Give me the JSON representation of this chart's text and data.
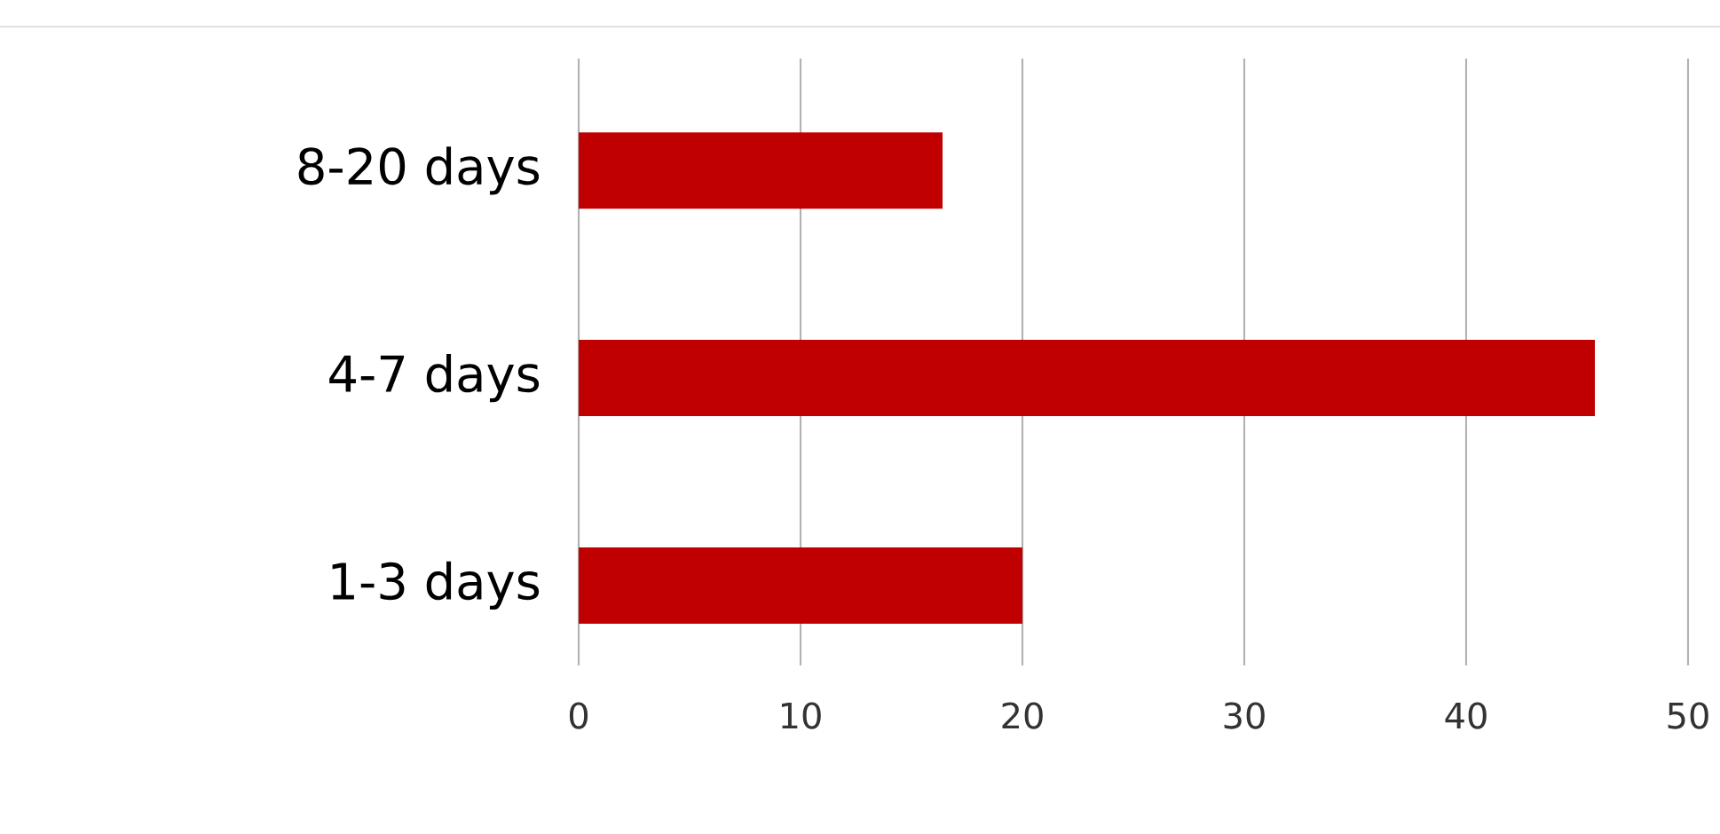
{
  "chart_data": {
    "type": "bar",
    "orientation": "horizontal",
    "categories": [
      "8-20 days",
      "4-7 days",
      "1-3 days"
    ],
    "values": [
      16.4,
      45.8,
      20.0
    ],
    "color": "#c00000",
    "xlim": [
      0,
      50
    ],
    "xticks": [
      0,
      10,
      20,
      30,
      40,
      50
    ],
    "grid": "x"
  }
}
